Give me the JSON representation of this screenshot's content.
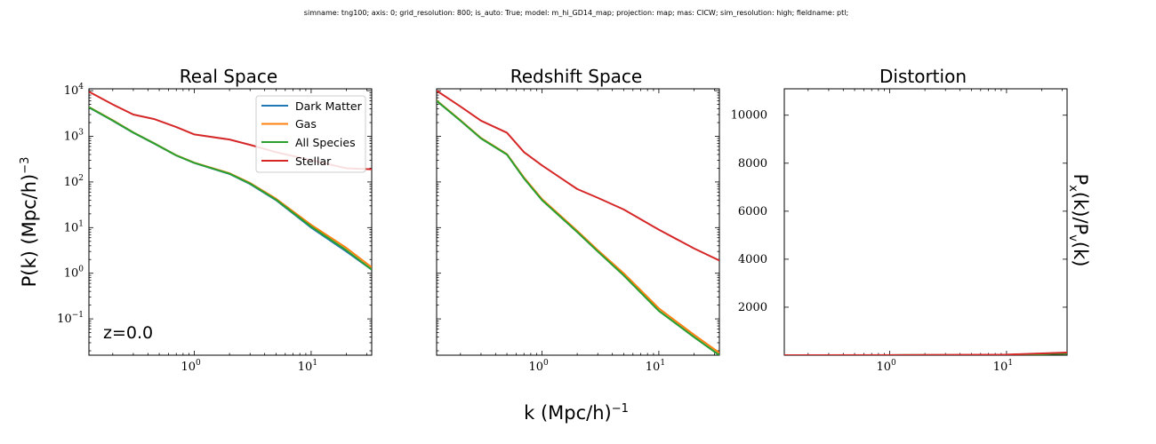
{
  "suptitle": "simname: tng100; axis: 0; grid_resolution: 800; is_auto: True; model: m_hi_GD14_map; projection: map; mas: CICW; sim_resolution: high; fieldname: ptl;",
  "xlabel": "k (Mpc/h)",
  "xlabel_exp": "−1",
  "ylabel": "P(k) (Mpc/h)",
  "ylabel_exp": "−3",
  "ratio_label": "P",
  "ratio_label_s1": "x",
  "ratio_label_mid": "(k)/P",
  "ratio_label_s2": "v",
  "ratio_label_end": "(k)",
  "annotation": "z=0.0",
  "colors": {
    "Dark Matter": "#1f77b4",
    "Gas": "#ff7f0e",
    "All Species": "#2ca02c",
    "Stellar": "#d62728"
  },
  "chart_data": [
    {
      "type": "line",
      "title": "Real Space",
      "xscale": "log",
      "yscale": "log",
      "xlim": [
        0.125,
        33
      ],
      "ylim": [
        0.016,
        11000
      ],
      "xticks": [
        {
          "base": "10",
          "exp": "0"
        },
        {
          "base": "10",
          "exp": "1"
        }
      ],
      "yticks": [
        {
          "value": 0.1,
          "base": "10",
          "exp": "−1"
        },
        {
          "value": 1,
          "base": "10",
          "exp": "0"
        },
        {
          "value": 10,
          "base": "10",
          "exp": "1"
        },
        {
          "value": 100,
          "base": "10",
          "exp": "2"
        },
        {
          "value": 1000,
          "base": "10",
          "exp": "3"
        },
        {
          "value": 10000,
          "base": "10",
          "exp": "4"
        }
      ],
      "legend": [
        "Dark Matter",
        "Gas",
        "All Species",
        "Stellar"
      ],
      "legend_position": "top-right",
      "series": [
        {
          "name": "Dark Matter",
          "x": [
            0.125,
            0.2,
            0.3,
            0.45,
            0.7,
            1,
            2,
            3,
            5,
            10,
            20,
            33
          ],
          "y": [
            4300,
            2200,
            1200,
            700,
            380,
            260,
            150,
            90,
            40,
            10,
            3,
            1.2
          ]
        },
        {
          "name": "Gas",
          "x": [
            0.125,
            0.2,
            0.3,
            0.45,
            0.7,
            1,
            2,
            3,
            5,
            10,
            20,
            33
          ],
          "y": [
            4400,
            2250,
            1220,
            710,
            385,
            265,
            155,
            95,
            43,
            11.5,
            3.6,
            1.35
          ]
        },
        {
          "name": "All Species",
          "x": [
            0.125,
            0.2,
            0.3,
            0.45,
            0.7,
            1,
            2,
            3,
            5,
            10,
            20,
            33
          ],
          "y": [
            4350,
            2220,
            1210,
            705,
            382,
            262,
            152,
            92,
            41,
            10.5,
            3.2,
            1.2
          ]
        },
        {
          "name": "Stellar",
          "x": [
            0.125,
            0.2,
            0.3,
            0.45,
            0.7,
            1,
            2,
            3,
            5,
            10,
            20,
            33
          ],
          "y": [
            9500,
            5000,
            3000,
            2400,
            1600,
            1100,
            850,
            650,
            450,
            300,
            200,
            190
          ]
        }
      ]
    },
    {
      "type": "line",
      "title": "Redshift Space",
      "xscale": "log",
      "yscale": "log",
      "xlim": [
        0.125,
        33
      ],
      "ylim": [
        0.016,
        11000
      ],
      "xticks": [
        {
          "base": "10",
          "exp": "0"
        },
        {
          "base": "10",
          "exp": "1"
        }
      ],
      "series": [
        {
          "name": "Dark Matter",
          "x": [
            0.125,
            0.2,
            0.3,
            0.5,
            0.7,
            1,
            2,
            3,
            5,
            10,
            20,
            33
          ],
          "y": [
            6000,
            2200,
            900,
            400,
            120,
            40,
            8,
            3,
            0.9,
            0.15,
            0.04,
            0.016
          ]
        },
        {
          "name": "Gas",
          "x": [
            0.125,
            0.2,
            0.3,
            0.5,
            0.7,
            1,
            2,
            3,
            5,
            10,
            20,
            33
          ],
          "y": [
            6100,
            2250,
            920,
            410,
            125,
            42,
            8.5,
            3.2,
            1,
            0.17,
            0.045,
            0.018
          ]
        },
        {
          "name": "All Species",
          "x": [
            0.125,
            0.2,
            0.3,
            0.5,
            0.7,
            1,
            2,
            3,
            5,
            10,
            20,
            33
          ],
          "y": [
            6000,
            2200,
            900,
            400,
            120,
            40,
            8,
            3,
            0.9,
            0.15,
            0.04,
            0.016
          ]
        },
        {
          "name": "Stellar",
          "x": [
            0.125,
            0.2,
            0.3,
            0.5,
            0.7,
            1,
            2,
            3,
            5,
            10,
            20,
            33
          ],
          "y": [
            10000,
            4500,
            2200,
            1200,
            450,
            230,
            70,
            45,
            25,
            9,
            3.5,
            1.9
          ]
        }
      ]
    },
    {
      "type": "line",
      "title": "Distortion",
      "xscale": "log",
      "yscale": "linear",
      "xlim": [
        0.125,
        33
      ],
      "ylim": [
        0,
        11100
      ],
      "xticks": [
        {
          "base": "10",
          "exp": "0"
        },
        {
          "base": "10",
          "exp": "1"
        }
      ],
      "yticks": [
        {
          "value": 2000,
          "label": "2000"
        },
        {
          "value": 4000,
          "label": "4000"
        },
        {
          "value": 6000,
          "label": "6000"
        },
        {
          "value": 8000,
          "label": "8000"
        },
        {
          "value": 10000,
          "label": "10000"
        }
      ],
      "series": [
        {
          "name": "Dark Matter",
          "x": [
            0.125,
            1,
            10,
            33
          ],
          "y": [
            1,
            2,
            10,
            70
          ]
        },
        {
          "name": "Gas",
          "x": [
            0.125,
            1,
            10,
            33
          ],
          "y": [
            1,
            2,
            10,
            70
          ]
        },
        {
          "name": "All Species",
          "x": [
            0.125,
            1,
            10,
            33
          ],
          "y": [
            1,
            2,
            10,
            70
          ]
        },
        {
          "name": "Stellar",
          "x": [
            0.125,
            1,
            10,
            33
          ],
          "y": [
            1,
            3,
            25,
            110
          ]
        }
      ]
    }
  ]
}
